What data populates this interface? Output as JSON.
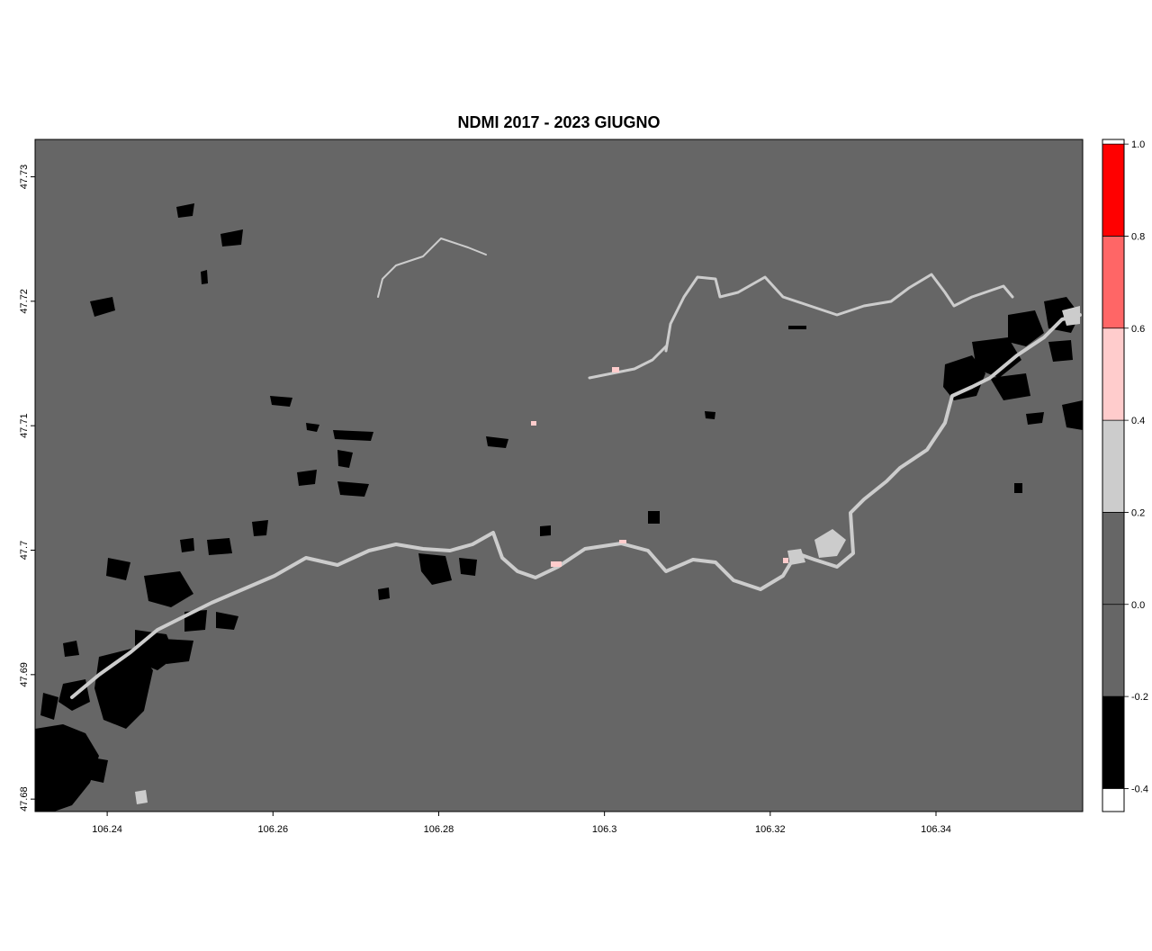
{
  "title": "NDMI 2017 - 2023 GIUGNO",
  "map": {
    "x_ticks": [
      "106.24",
      "106.26",
      "106.28",
      "106.3",
      "106.32",
      "106.34"
    ],
    "y_ticks": [
      "47.73",
      "47.72",
      "47.71",
      "47.7",
      "47.69",
      "47.68"
    ],
    "x_range": [
      106.2313,
      106.3577
    ],
    "y_range": [
      47.679,
      47.733
    ],
    "background_class_color": "#666666"
  },
  "legend": {
    "classes": [
      {
        "range": [
          0.8,
          1.0
        ],
        "color": "#ff0000"
      },
      {
        "range": [
          0.6,
          0.8
        ],
        "color": "#ff6666"
      },
      {
        "range": [
          0.4,
          0.6
        ],
        "color": "#ffcccc"
      },
      {
        "range": [
          0.2,
          0.4
        ],
        "color": "#cccccc"
      },
      {
        "range": [
          0.0,
          0.2
        ],
        "color": "#666666"
      },
      {
        "range": [
          -0.2,
          0.0
        ],
        "color": "#666666"
      },
      {
        "range": [
          -0.4,
          -0.2
        ],
        "color": "#000000"
      }
    ],
    "ticks": [
      "1.0",
      "0.8",
      "0.6",
      "0.4",
      "0.2",
      "0.0",
      "-0.2",
      "-0.4"
    ],
    "range": [
      -0.45,
      1.01
    ]
  }
}
